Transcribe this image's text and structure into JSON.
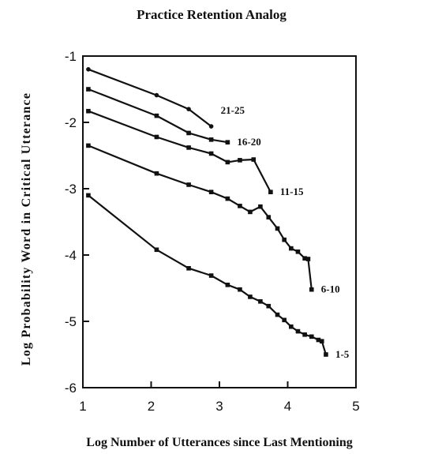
{
  "chart_data": {
    "type": "line",
    "title": "Practice Retention Analog",
    "xlabel": "Log Number of Utterances since Last Mentioning",
    "ylabel": "Log Probability Word in Critical Utterance",
    "xlim": [
      1,
      5
    ],
    "ylim": [
      -6,
      -1
    ],
    "xticks": [
      "1",
      "2",
      "3",
      "4",
      "5"
    ],
    "yticks": [
      "-1",
      "-2",
      "-3",
      "-4",
      "-5",
      "-6"
    ],
    "grid": false,
    "legend": "none",
    "series": [
      {
        "name": "21-25",
        "marker": "circle",
        "points": [
          [
            1.08,
            -1.2
          ],
          [
            2.08,
            -1.59
          ],
          [
            2.55,
            -1.8
          ],
          [
            2.88,
            -2.06
          ]
        ]
      },
      {
        "name": "16-20",
        "marker": "square",
        "points": [
          [
            1.08,
            -1.5
          ],
          [
            2.08,
            -1.9
          ],
          [
            2.55,
            -2.16
          ],
          [
            2.88,
            -2.26
          ],
          [
            3.12,
            -2.3
          ]
        ]
      },
      {
        "name": "11-15",
        "marker": "square",
        "points": [
          [
            1.08,
            -1.83
          ],
          [
            2.08,
            -2.22
          ],
          [
            2.55,
            -2.38
          ],
          [
            2.88,
            -2.47
          ],
          [
            3.12,
            -2.6
          ],
          [
            3.3,
            -2.57
          ],
          [
            3.5,
            -2.56
          ],
          [
            3.75,
            -3.05
          ]
        ]
      },
      {
        "name": "6-10",
        "marker": "square",
        "points": [
          [
            1.08,
            -2.35
          ],
          [
            2.08,
            -2.77
          ],
          [
            2.55,
            -2.94
          ],
          [
            2.88,
            -3.05
          ],
          [
            3.12,
            -3.15
          ],
          [
            3.3,
            -3.26
          ],
          [
            3.45,
            -3.35
          ],
          [
            3.6,
            -3.27
          ],
          [
            3.72,
            -3.43
          ],
          [
            3.85,
            -3.6
          ],
          [
            3.95,
            -3.77
          ],
          [
            4.05,
            -3.9
          ],
          [
            4.15,
            -3.95
          ],
          [
            4.25,
            -4.05
          ],
          [
            4.3,
            -4.06
          ],
          [
            4.35,
            -4.52
          ]
        ]
      },
      {
        "name": "1-5",
        "marker": "square",
        "points": [
          [
            1.08,
            -3.1
          ],
          [
            2.08,
            -3.92
          ],
          [
            2.55,
            -4.2
          ],
          [
            2.88,
            -4.31
          ],
          [
            3.12,
            -4.45
          ],
          [
            3.3,
            -4.52
          ],
          [
            3.45,
            -4.63
          ],
          [
            3.6,
            -4.7
          ],
          [
            3.72,
            -4.77
          ],
          [
            3.85,
            -4.9
          ],
          [
            3.95,
            -4.98
          ],
          [
            4.05,
            -5.08
          ],
          [
            4.15,
            -5.15
          ],
          [
            4.25,
            -5.2
          ],
          [
            4.35,
            -5.23
          ],
          [
            4.45,
            -5.28
          ],
          [
            4.5,
            -5.3
          ],
          [
            4.56,
            -5.5
          ]
        ]
      }
    ]
  }
}
